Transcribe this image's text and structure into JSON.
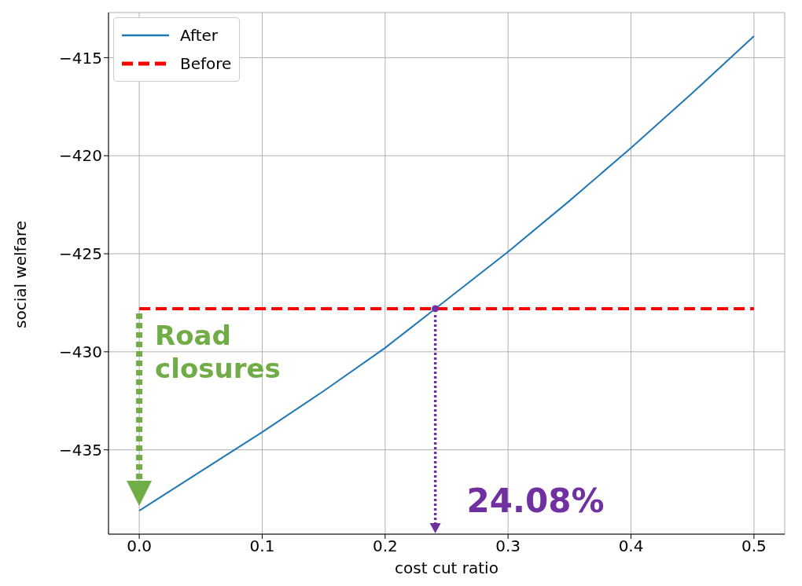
{
  "chart_data": {
    "type": "line",
    "xlabel": "cost cut ratio",
    "ylabel": "social welfare",
    "xlim": [
      -0.025,
      0.525
    ],
    "ylim": [
      -439.3,
      -412.7
    ],
    "xticks": [
      {
        "value": 0,
        "label": "0.0"
      },
      {
        "value": 0.1,
        "label": "0.1"
      },
      {
        "value": 0.2,
        "label": "0.2"
      },
      {
        "value": 0.3,
        "label": "0.3"
      },
      {
        "value": 0.4,
        "label": "0.4"
      },
      {
        "value": 0.5,
        "label": "0.5"
      }
    ],
    "yticks": [
      {
        "value": -435,
        "label": "−435"
      },
      {
        "value": -430,
        "label": "−430"
      },
      {
        "value": -425,
        "label": "−425"
      },
      {
        "value": -420,
        "label": "−420"
      },
      {
        "value": -415,
        "label": "−415"
      }
    ],
    "grid": true,
    "legend": "top left",
    "series": [
      {
        "name": "After",
        "color": "#1f77b4",
        "x": [
          0,
          0.05,
          0.1,
          0.15,
          0.2,
          0.2408,
          0.3,
          0.35,
          0.4,
          0.45,
          0.5
        ],
        "values": [
          -438.1,
          -436.1,
          -434.1,
          -432.0,
          -429.8,
          -427.8,
          -424.9,
          -422.3,
          -419.6,
          -416.8,
          -413.9
        ]
      },
      {
        "name": "Before",
        "type": "line",
        "line_style": "dashed",
        "color": "#ff0000",
        "x": [
          0,
          0.5
        ],
        "values": [
          -427.8,
          -427.8
        ]
      },
      {
        "type": "scatter",
        "color": "#7030a0",
        "x": [
          0.2408
        ],
        "values": [
          -427.8
        ]
      }
    ],
    "annotations": [
      {
        "text": "Road closures",
        "x": 0,
        "y": -427.8
      },
      {
        "text": "24.08%",
        "x": 0.2408,
        "y": -427.8
      }
    ]
  }
}
